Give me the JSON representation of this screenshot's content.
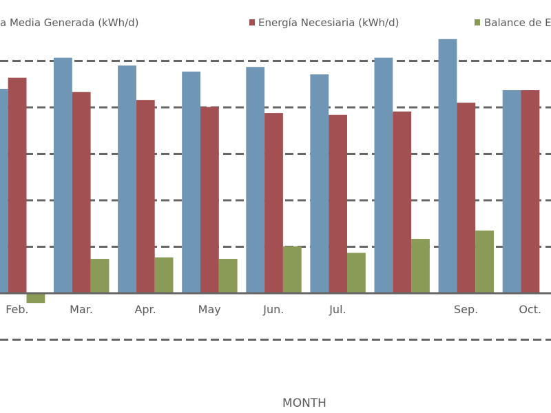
{
  "chart_data": {
    "type": "bar",
    "title": "",
    "xlabel": "MONTH",
    "ylabel": "",
    "categories": [
      "Feb.",
      "Mar.",
      "Apr.",
      "May",
      "Jun.",
      "Jul.",
      "",
      "Sep.",
      "Oct."
    ],
    "series": [
      {
        "name": "a Media Generada (kWh/d)",
        "color": "#7096b6",
        "values": [
          4.4,
          5.07,
          4.9,
          4.77,
          4.87,
          4.71,
          5.07,
          5.47,
          4.37
        ]
      },
      {
        "name": "Energía Necesiaria (kWh/d)",
        "color": "#a35052",
        "values": [
          4.64,
          4.33,
          4.16,
          4.01,
          3.88,
          3.84,
          3.91,
          4.1,
          4.37
        ]
      },
      {
        "name": "Balance de E",
        "color": "#8a9a57",
        "values": [
          -0.21,
          0.74,
          0.77,
          0.74,
          1.01,
          0.87,
          1.17,
          1.35,
          0.0
        ]
      }
    ],
    "ylim": [
      -1.2,
      6.3
    ],
    "gridlines": [
      -1,
      1,
      2,
      3,
      4,
      5
    ],
    "grid": true,
    "legend": "top"
  }
}
